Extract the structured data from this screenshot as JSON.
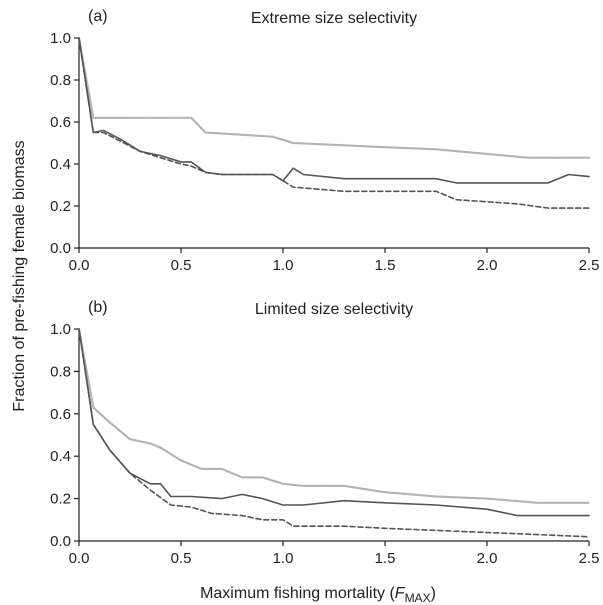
{
  "ylabel": "Fraction of pre-fishing female biomass",
  "xlabel": {
    "main": "Maximum fishing mortality (",
    "sym": "F",
    "sub": "MAX",
    "close": ")"
  },
  "colors": {
    "axis": "#222222",
    "dark_solid": "#555555",
    "dashed": "#555555",
    "light_dotted": "#b3b3b3"
  },
  "chart_data": [
    {
      "type": "line",
      "panel_label": "(a)",
      "title": "Extreme size selectivity",
      "xlim": [
        0,
        2.5
      ],
      "ylim": [
        0,
        1.0
      ],
      "xticks": [
        "0.0",
        "0.5",
        "1.0",
        "1.5",
        "2.0",
        "2.5"
      ],
      "yticks": [
        "0.0",
        "0.2",
        "0.4",
        "0.6",
        "0.8",
        "1.0"
      ],
      "grid": false,
      "series": [
        {
          "style": "light-dotted",
          "x": [
            0,
            0.07,
            0.15,
            0.55,
            0.62,
            0.95,
            1.05,
            1.5,
            1.75,
            2.2,
            2.5
          ],
          "y": [
            1.0,
            0.62,
            0.62,
            0.62,
            0.55,
            0.53,
            0.5,
            0.48,
            0.47,
            0.43,
            0.43
          ]
        },
        {
          "style": "solid-dark",
          "x": [
            0,
            0.07,
            0.12,
            0.2,
            0.3,
            0.4,
            0.5,
            0.55,
            0.62,
            0.7,
            0.95,
            1.0,
            1.05,
            1.1,
            1.3,
            1.5,
            1.75,
            1.85,
            2.0,
            2.3,
            2.4,
            2.5
          ],
          "y": [
            1.0,
            0.55,
            0.56,
            0.52,
            0.46,
            0.44,
            0.41,
            0.41,
            0.36,
            0.35,
            0.35,
            0.32,
            0.38,
            0.35,
            0.33,
            0.33,
            0.33,
            0.31,
            0.31,
            0.31,
            0.35,
            0.34
          ]
        },
        {
          "style": "dashed",
          "x": [
            0,
            0.07,
            0.12,
            0.2,
            0.3,
            0.4,
            0.5,
            0.55,
            0.62,
            0.7,
            0.95,
            1.05,
            1.3,
            1.5,
            1.75,
            1.85,
            2.0,
            2.15,
            2.3,
            2.5
          ],
          "y": [
            1.0,
            0.55,
            0.55,
            0.51,
            0.46,
            0.43,
            0.4,
            0.39,
            0.36,
            0.35,
            0.35,
            0.29,
            0.27,
            0.27,
            0.27,
            0.23,
            0.22,
            0.21,
            0.19,
            0.19
          ]
        }
      ]
    },
    {
      "type": "line",
      "panel_label": "(b)",
      "title": "Limited size selectivity",
      "xlim": [
        0,
        2.5
      ],
      "ylim": [
        0,
        1.0
      ],
      "xticks": [
        "0.0",
        "0.5",
        "1.0",
        "1.5",
        "2.0",
        "2.5"
      ],
      "yticks": [
        "0.0",
        "0.2",
        "0.4",
        "0.6",
        "0.8",
        "1.0"
      ],
      "grid": false,
      "series": [
        {
          "style": "light-dotted",
          "x": [
            0,
            0.07,
            0.15,
            0.25,
            0.35,
            0.4,
            0.5,
            0.6,
            0.7,
            0.8,
            0.9,
            1.0,
            1.1,
            1.3,
            1.5,
            1.75,
            2.0,
            2.25,
            2.5
          ],
          "y": [
            1.0,
            0.63,
            0.56,
            0.48,
            0.46,
            0.44,
            0.38,
            0.34,
            0.34,
            0.3,
            0.3,
            0.27,
            0.26,
            0.26,
            0.23,
            0.21,
            0.2,
            0.18,
            0.18
          ]
        },
        {
          "style": "solid-dark",
          "x": [
            0,
            0.07,
            0.15,
            0.25,
            0.35,
            0.4,
            0.45,
            0.55,
            0.7,
            0.8,
            0.9,
            1.0,
            1.1,
            1.3,
            1.5,
            1.75,
            2.0,
            2.15,
            2.4,
            2.5
          ],
          "y": [
            1.0,
            0.55,
            0.43,
            0.32,
            0.27,
            0.27,
            0.21,
            0.21,
            0.2,
            0.22,
            0.2,
            0.17,
            0.17,
            0.19,
            0.18,
            0.17,
            0.15,
            0.12,
            0.12,
            0.12
          ]
        },
        {
          "style": "dashed",
          "x": [
            0,
            0.07,
            0.15,
            0.25,
            0.35,
            0.45,
            0.55,
            0.65,
            0.8,
            0.9,
            1.0,
            1.05,
            1.3,
            1.5,
            1.75,
            2.0,
            2.25,
            2.5
          ],
          "y": [
            1.0,
            0.55,
            0.43,
            0.32,
            0.24,
            0.17,
            0.16,
            0.13,
            0.12,
            0.1,
            0.1,
            0.07,
            0.07,
            0.06,
            0.05,
            0.04,
            0.03,
            0.02
          ]
        }
      ]
    }
  ]
}
